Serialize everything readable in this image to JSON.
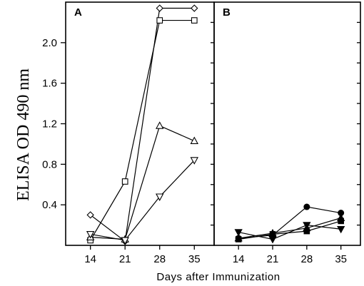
{
  "chart_data": {
    "type": "line",
    "ylabel": "ELISA OD 490 nm",
    "xlabel": "Days after Immunization",
    "ylim": [
      0.0,
      2.4
    ],
    "yticks": [
      0.4,
      0.8,
      1.2,
      1.6,
      2.0
    ],
    "ytick_labels": [
      "0.4",
      "0.8",
      "1.2",
      "1.6",
      "2.0"
    ],
    "xticks": [
      14,
      21,
      28,
      35
    ],
    "xtick_labels": [
      "14",
      "21",
      "28",
      "35"
    ],
    "grid": false,
    "panels": [
      {
        "label": "A",
        "series": [
          {
            "marker": "diamond-open",
            "x": [
              14,
              21,
              28,
              35
            ],
            "values": [
              0.3,
              0.04,
              2.34,
              2.34
            ]
          },
          {
            "marker": "square-open",
            "x": [
              14,
              21,
              28,
              35
            ],
            "values": [
              0.05,
              0.63,
              2.22,
              2.22
            ]
          },
          {
            "marker": "triangle-up-open",
            "x": [
              14,
              21,
              28,
              35
            ],
            "values": [
              0.08,
              0.06,
              1.18,
              1.03
            ]
          },
          {
            "marker": "triangle-down-open",
            "x": [
              14,
              21,
              28,
              35
            ],
            "values": [
              0.11,
              0.05,
              0.48,
              0.84
            ]
          }
        ]
      },
      {
        "label": "B",
        "series": [
          {
            "marker": "circle-filled",
            "x": [
              14,
              21,
              28,
              35
            ],
            "values": [
              0.07,
              0.1,
              0.38,
              0.32
            ]
          },
          {
            "marker": "square-filled",
            "x": [
              14,
              21,
              28,
              35
            ],
            "values": [
              0.06,
              0.11,
              0.14,
              0.24
            ]
          },
          {
            "marker": "triangle-down-filled",
            "x": [
              14,
              21,
              28,
              35
            ],
            "values": [
              0.13,
              0.06,
              0.2,
              0.16
            ]
          },
          {
            "marker": "triangle-up-filled",
            "x": [
              14,
              21,
              28,
              35
            ],
            "values": [
              0.07,
              0.12,
              0.17,
              0.27
            ]
          }
        ]
      }
    ]
  }
}
